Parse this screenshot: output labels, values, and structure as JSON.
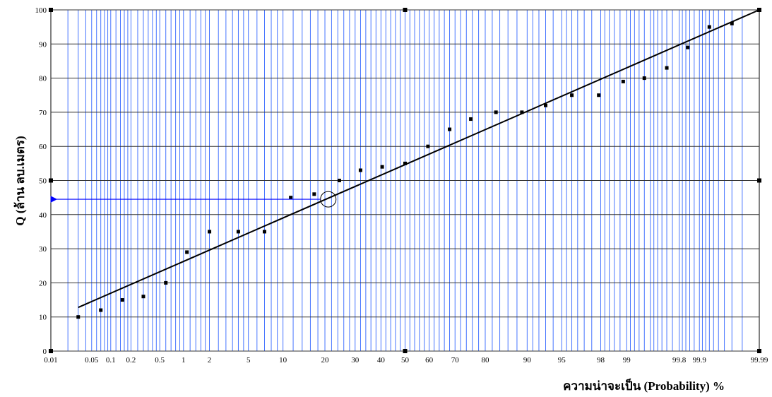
{
  "chart_data": {
    "type": "scatter",
    "x_scale": "normal-probability",
    "xlabel": "ความน่าจะเป็น (Probability) %",
    "ylabel": "Q (ล้าน ลบ.เมตร)",
    "xlim": [
      0.01,
      99.99
    ],
    "ylim": [
      0,
      100
    ],
    "x_ticks": [
      0.01,
      0.05,
      0.1,
      0.2,
      0.5,
      1,
      2,
      5,
      10,
      20,
      30,
      40,
      50,
      60,
      70,
      80,
      90,
      95,
      98,
      99,
      99.8,
      99.9,
      99.99
    ],
    "x_tick_labels": [
      "0.01",
      "0.05",
      "0.1",
      "0.2",
      "0.5",
      "1",
      "2",
      "5",
      "10",
      "20",
      "30",
      "40",
      "50",
      "60",
      "70",
      "80",
      "90",
      "95",
      "98",
      "99",
      "99.8",
      "99.9",
      "99.99"
    ],
    "y_ticks": [
      0,
      10,
      20,
      30,
      40,
      50,
      60,
      70,
      80,
      90,
      100
    ],
    "y_tick_labels": [
      "0",
      "10",
      "20",
      "30",
      "40",
      "50",
      "60",
      "70",
      "80",
      "90",
      "100"
    ],
    "grid": true,
    "colors": {
      "vertical_grid": "#3366ff",
      "horizontal_grid": "#333333",
      "points": "#000000",
      "fit_line": "#000000",
      "annotation": "#0000ff"
    },
    "series": [
      {
        "values": [
          [
            0.03,
            10
          ],
          [
            0.07,
            12
          ],
          [
            0.15,
            15
          ],
          [
            0.3,
            16
          ],
          [
            0.6,
            20
          ],
          [
            1.1,
            29
          ],
          [
            2.0,
            35
          ],
          [
            4.0,
            35
          ],
          [
            7.0,
            35
          ],
          [
            11.5,
            45
          ],
          [
            17,
            46
          ],
          [
            24.5,
            50
          ],
          [
            32,
            53
          ],
          [
            40.5,
            54
          ],
          [
            50,
            55
          ],
          [
            59.5,
            60
          ],
          [
            68,
            65
          ],
          [
            75.5,
            68
          ],
          [
            83,
            70
          ],
          [
            89,
            70
          ],
          [
            93,
            72
          ],
          [
            96,
            75
          ],
          [
            97.9,
            75
          ],
          [
            98.9,
            79
          ],
          [
            99.4,
            80
          ],
          [
            99.7,
            83
          ],
          [
            99.85,
            89
          ],
          [
            99.93,
            95
          ],
          [
            99.97,
            96
          ]
        ]
      }
    ],
    "fit_line": {
      "x": [
        0.03,
        99.99
      ],
      "y": [
        12.8,
        100
      ]
    },
    "annotation": {
      "circle_at": {
        "x": 21,
        "y": 44.5
      },
      "arrow_to_y": 44.5
    }
  }
}
